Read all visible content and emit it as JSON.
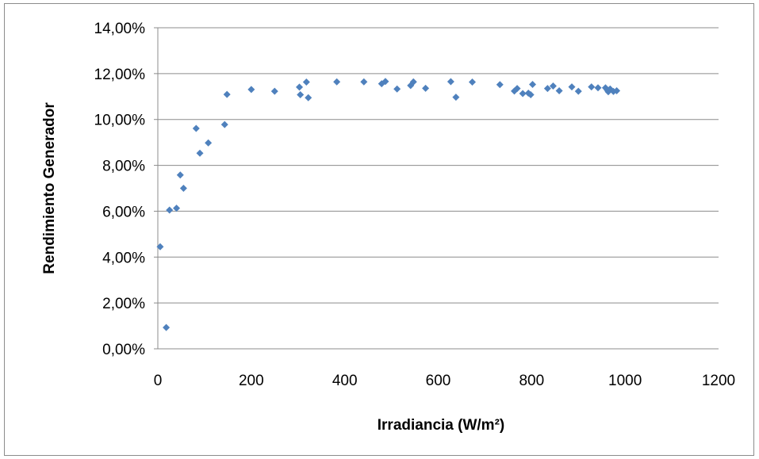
{
  "chart_data": {
    "type": "scatter",
    "xlabel": "Irradiancia (W/m²)",
    "ylabel": "Rendimiento Generador",
    "xlim": [
      0,
      1200
    ],
    "ylim": [
      0,
      0.14
    ],
    "x_ticks": [
      0,
      200,
      400,
      600,
      800,
      1000,
      1200
    ],
    "x_tick_labels": [
      "0",
      "200",
      "400",
      "600",
      "800",
      "1000",
      "1200"
    ],
    "y_ticks": [
      0,
      0.02,
      0.04,
      0.06,
      0.08,
      0.1,
      0.12,
      0.14
    ],
    "y_tick_labels": [
      "0,00%",
      "2,00%",
      "4,00%",
      "6,00%",
      "8,00%",
      "10,00%",
      "12,00%",
      "14,00%"
    ],
    "grid": "horizontal",
    "legend": "none",
    "marker_color": "#4f81bd",
    "marker": "diamond",
    "series": [
      {
        "x": [
          5,
          18,
          25,
          40,
          48,
          55,
          82,
          90,
          108,
          143,
          148,
          200,
          250,
          303,
          305,
          318,
          322,
          383,
          441,
          479,
          487,
          512,
          541,
          547,
          573,
          627,
          638,
          673,
          732,
          763,
          769,
          781,
          793,
          798,
          802,
          834,
          846,
          859,
          886,
          900,
          928,
          942,
          958,
          962,
          964,
          968,
          975,
          982
        ],
        "y": [
          0.0445,
          0.0093,
          0.0605,
          0.0613,
          0.0758,
          0.07,
          0.0961,
          0.0853,
          0.0898,
          0.0978,
          0.1109,
          0.1131,
          0.1123,
          0.1141,
          0.1108,
          0.1163,
          0.1095,
          0.1164,
          0.1164,
          0.1156,
          0.1166,
          0.1133,
          0.1148,
          0.1164,
          0.1136,
          0.1165,
          0.1097,
          0.1163,
          0.1152,
          0.1124,
          0.1135,
          0.1113,
          0.1115,
          0.1108,
          0.1153,
          0.1135,
          0.1146,
          0.1125,
          0.1142,
          0.1123,
          0.1142,
          0.1138,
          0.1138,
          0.1128,
          0.1121,
          0.1133,
          0.1122,
          0.1125
        ]
      }
    ]
  }
}
